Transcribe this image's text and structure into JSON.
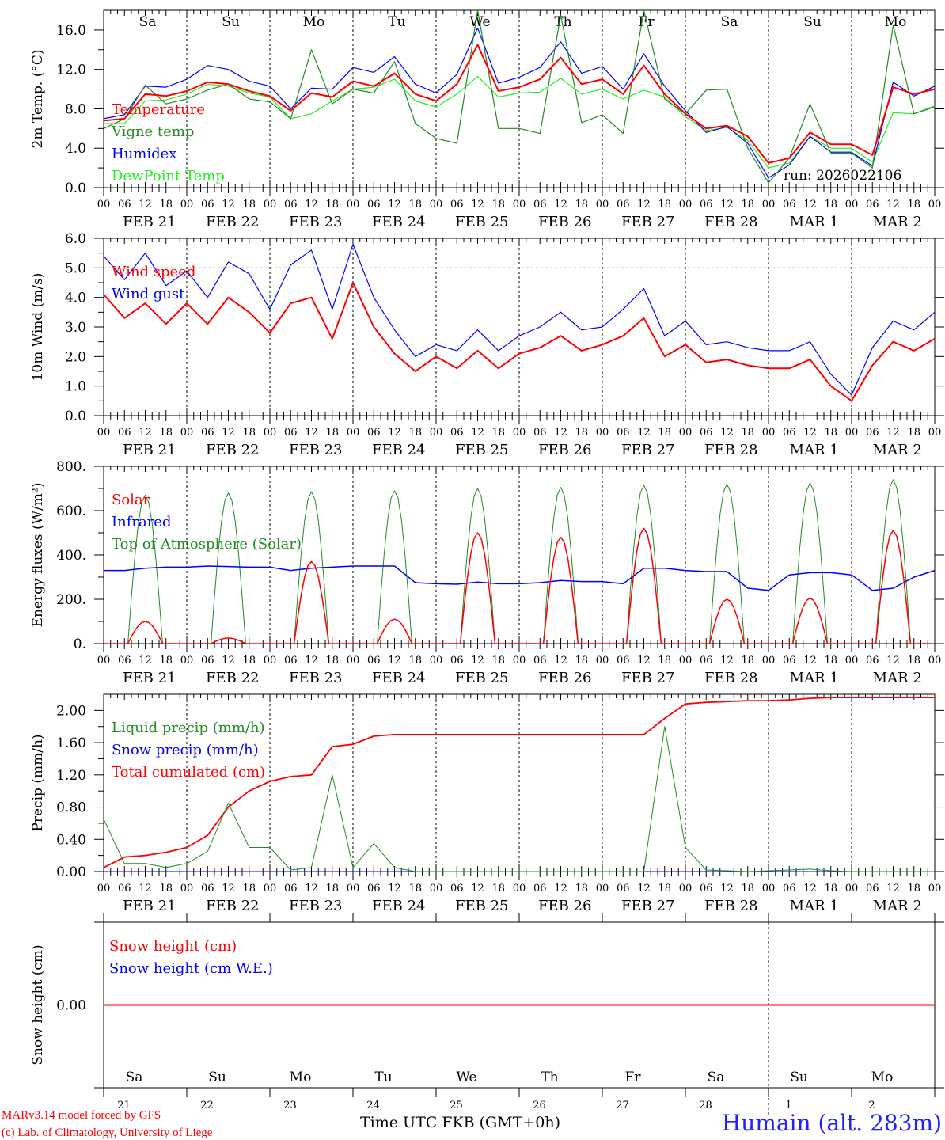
{
  "colors": {
    "red": "#ff0000",
    "green": "#228b22",
    "blue": "#0000ff",
    "lime": "#22ee22",
    "black": "#000000"
  },
  "days": [
    {
      "name": "Sa",
      "date": "FEB  21",
      "num": "21",
      "weekend": true
    },
    {
      "name": "Su",
      "date": "FEB  22",
      "num": "22",
      "weekend": true
    },
    {
      "name": "Mo",
      "date": "FEB  23",
      "num": "23",
      "weekend": false
    },
    {
      "name": "Tu",
      "date": "FEB  24",
      "num": "24",
      "weekend": false
    },
    {
      "name": "We",
      "date": "FEB  25",
      "num": "25",
      "weekend": false
    },
    {
      "name": "Th",
      "date": "FEB  26",
      "num": "26",
      "weekend": false
    },
    {
      "name": "Fr",
      "date": "FEB  27",
      "num": "27",
      "weekend": false
    },
    {
      "name": "Sa",
      "date": "FEB  28",
      "num": "28",
      "weekend": true
    },
    {
      "name": "Su",
      "date": "MAR   1",
      "num": "1",
      "weekend": true
    },
    {
      "name": "Mo",
      "date": "MAR   2",
      "num": "2",
      "weekend": false
    }
  ],
  "hour_labels": [
    "00",
    "06",
    "12",
    "18"
  ],
  "footer": {
    "model": "MARv3.14 model forced by GFS",
    "copyright": "(c) Lab. of Climatology, University of Liege",
    "time_label": "Time UTC",
    "time_overlap": "FKB",
    "time_zone": "(GMT+0h)",
    "station": "Humain (alt. 283m)"
  },
  "chart_data": [
    {
      "type": "line",
      "id": "temp",
      "ylabel": "2m Temp. (°C)",
      "ylim": [
        0,
        18
      ],
      "yticks": [
        0,
        4,
        8,
        12,
        16
      ],
      "ytick_labels": [
        "0.0",
        "4.0",
        "8.0",
        "12.0",
        "16.0"
      ],
      "x_step_hours": 6,
      "annotation": "run: 2026022106",
      "series": [
        {
          "name": "Temperature",
          "color": "#ff0000",
          "width": 2,
          "values": [
            6.8,
            7.0,
            9.5,
            9.3,
            9.8,
            10.7,
            10.5,
            9.8,
            9.3,
            7.8,
            9.6,
            9.2,
            10.8,
            10.3,
            11.6,
            9.5,
            8.8,
            10.5,
            14.5,
            9.8,
            10.2,
            11.0,
            13.2,
            10.5,
            11.0,
            9.5,
            12.4,
            9.5,
            7.5,
            6.0,
            6.3,
            5.2,
            2.5,
            3.0,
            5.6,
            4.4,
            4.4,
            3.3,
            10.2,
            9.5,
            10.0
          ]
        },
        {
          "name": "Vigne temp",
          "color": "#228b22",
          "width": 1.2,
          "values": [
            6.0,
            7.0,
            10.4,
            8.5,
            9.0,
            9.9,
            10.5,
            9.0,
            8.7,
            7.0,
            14.0,
            8.5,
            10.0,
            9.6,
            12.8,
            6.5,
            5.0,
            4.5,
            18.0,
            6.0,
            6.0,
            5.5,
            17.5,
            6.6,
            7.4,
            5.5,
            18.0,
            9.0,
            7.5,
            9.9,
            10.0,
            4.0,
            0.5,
            3.0,
            8.5,
            3.5,
            3.5,
            2.0,
            16.5,
            7.5,
            8.2
          ]
        },
        {
          "name": "Humidex",
          "color": "#0000ff",
          "width": 1.2,
          "values": [
            7.0,
            7.4,
            10.3,
            10.2,
            11.0,
            12.4,
            12.0,
            10.8,
            10.3,
            8.0,
            10.1,
            10.0,
            12.2,
            11.7,
            13.3,
            10.5,
            9.6,
            11.5,
            16.2,
            10.6,
            11.2,
            12.2,
            14.8,
            11.6,
            12.3,
            10.0,
            13.6,
            10.3,
            7.8,
            5.6,
            6.2,
            4.5,
            1.0,
            2.3,
            5.2,
            3.6,
            3.6,
            2.2,
            10.7,
            9.3,
            10.3
          ]
        },
        {
          "name": "DewPoint Temp",
          "color": "#22ee22",
          "width": 1.2,
          "values": [
            6.5,
            6.5,
            8.8,
            8.9,
            9.5,
            10.5,
            10.3,
            9.6,
            9.2,
            7.0,
            7.5,
            8.8,
            10.0,
            10.2,
            11.0,
            8.8,
            8.2,
            9.5,
            11.3,
            9.2,
            9.6,
            9.7,
            11.1,
            9.5,
            10.0,
            9.0,
            9.9,
            9.2,
            7.2,
            5.8,
            6.1,
            4.8,
            2.0,
            2.5,
            5.2,
            4.0,
            4.0,
            2.6,
            7.6,
            7.5,
            8.3
          ]
        }
      ]
    },
    {
      "type": "line",
      "id": "wind",
      "ylabel": "10m Wind (m/s)",
      "ylim": [
        0,
        6
      ],
      "yticks": [
        0,
        1,
        2,
        3,
        4,
        5,
        6
      ],
      "ytick_labels": [
        "0.0",
        "1.0",
        "2.0",
        "3.0",
        "4.0",
        "5.0",
        "6.0"
      ],
      "x_step_hours": 6,
      "reference_line": 5,
      "series": [
        {
          "name": "Wind speed",
          "color": "#ff0000",
          "width": 2,
          "values": [
            4.1,
            3.3,
            3.8,
            3.1,
            3.8,
            3.1,
            4.0,
            3.5,
            2.8,
            3.8,
            4.0,
            2.6,
            4.5,
            3.0,
            2.1,
            1.5,
            2.0,
            1.6,
            2.2,
            1.6,
            2.1,
            2.3,
            2.7,
            2.2,
            2.4,
            2.7,
            3.3,
            2.0,
            2.4,
            1.8,
            1.9,
            1.7,
            1.6,
            1.6,
            1.9,
            1.0,
            0.5,
            1.7,
            2.5,
            2.2,
            2.6
          ]
        },
        {
          "name": "Wind gust",
          "color": "#0000ff",
          "width": 1.2,
          "values": [
            5.4,
            4.6,
            5.5,
            4.4,
            4.9,
            4.0,
            5.2,
            4.8,
            3.6,
            5.1,
            5.6,
            3.6,
            5.8,
            4.0,
            2.9,
            2.0,
            2.4,
            2.2,
            2.9,
            2.2,
            2.7,
            3.0,
            3.5,
            2.9,
            3.0,
            3.6,
            4.3,
            2.7,
            3.2,
            2.4,
            2.5,
            2.3,
            2.2,
            2.2,
            2.5,
            1.4,
            0.7,
            2.3,
            3.2,
            2.9,
            3.5
          ]
        }
      ]
    },
    {
      "type": "line",
      "id": "flux",
      "ylabel": "Energy fluxes (W/m²)",
      "ylim": [
        0,
        800
      ],
      "yticks": [
        0,
        200,
        400,
        600,
        800
      ],
      "ytick_labels": [
        "0.",
        "200.",
        "400.",
        "600.",
        "800."
      ],
      "x_step_hours": 6,
      "daily_curve": "sunrise 07h, sunset 17h",
      "series": [
        {
          "name": "Solar",
          "color": "#ff0000",
          "width": 1.5,
          "daily_peaks": [
            100,
            25,
            370,
            110,
            500,
            480,
            520,
            200,
            205,
            510
          ]
        },
        {
          "name": "Infrared",
          "color": "#0000ff",
          "width": 1.5,
          "values": [
            330,
            330,
            340,
            345,
            345,
            350,
            348,
            345,
            345,
            330,
            340,
            345,
            350,
            350,
            350,
            275,
            270,
            268,
            278,
            270,
            270,
            275,
            285,
            280,
            280,
            270,
            340,
            340,
            330,
            325,
            325,
            250,
            240,
            310,
            320,
            320,
            310,
            240,
            250,
            300,
            330
          ]
        },
        {
          "name": "Top of Atmosphere (Solar)",
          "color": "#228b22",
          "width": 1,
          "daily_peaks": [
            670,
            680,
            685,
            690,
            700,
            705,
            715,
            720,
            725,
            740
          ]
        }
      ]
    },
    {
      "type": "line",
      "id": "precip",
      "ylabel": "Precip (mm/h)",
      "ylim": [
        0,
        2.2
      ],
      "yticks": [
        0,
        0.4,
        0.8,
        1.2,
        1.6,
        2.0
      ],
      "ytick_labels": [
        "0.00",
        "0.40",
        "0.80",
        "1.20",
        "1.60",
        "2.00"
      ],
      "x_step_hours": 6,
      "series": [
        {
          "name": "Liquid precip (mm/h)",
          "color": "#228b22",
          "width": 1,
          "values": [
            0.65,
            0.1,
            0.1,
            0.05,
            0.1,
            0.25,
            0.85,
            0.3,
            0.3,
            0.02,
            0.05,
            1.2,
            0.05,
            0.35,
            0.05,
            0,
            0,
            0,
            0,
            0,
            0,
            0,
            0,
            0,
            0,
            0,
            0,
            1.8,
            0.3,
            0.02,
            0.01,
            0,
            0.01,
            0.02,
            0.03,
            0.01,
            0,
            0,
            0,
            0,
            0
          ]
        },
        {
          "name": "Snow precip (mm/h)",
          "color": "#0000ff",
          "width": 1,
          "values": [
            0,
            0,
            0,
            0,
            0,
            0,
            0,
            0,
            0,
            0,
            0,
            0,
            0,
            0,
            0,
            0,
            0,
            0,
            0,
            0,
            0,
            0,
            0,
            0,
            0,
            0,
            0,
            0,
            0,
            0,
            0,
            0,
            0,
            0,
            0,
            0,
            0,
            0,
            0,
            0,
            0
          ]
        },
        {
          "name": "Total cumulated (cm)",
          "color": "#ff0000",
          "width": 1.8,
          "values": [
            0.05,
            0.18,
            0.2,
            0.24,
            0.3,
            0.45,
            0.8,
            1.0,
            1.12,
            1.18,
            1.2,
            1.55,
            1.58,
            1.68,
            1.7,
            1.7,
            1.7,
            1.7,
            1.7,
            1.7,
            1.7,
            1.7,
            1.7,
            1.7,
            1.7,
            1.7,
            1.7,
            1.9,
            2.08,
            2.1,
            2.11,
            2.12,
            2.12,
            2.13,
            2.15,
            2.16,
            2.16,
            2.16,
            2.16,
            2.16,
            2.16
          ]
        }
      ]
    },
    {
      "type": "line",
      "id": "snow",
      "ylabel": "Snow height (cm)",
      "ylim": [
        -1,
        1
      ],
      "yticks": [
        0
      ],
      "ytick_labels": [
        "0.00"
      ],
      "x_step_hours": 6,
      "series": [
        {
          "name": "Snow height (cm)",
          "color": "#ff0000",
          "width": 2,
          "values": [
            0,
            0,
            0,
            0,
            0,
            0,
            0,
            0,
            0,
            0,
            0,
            0,
            0,
            0,
            0,
            0,
            0,
            0,
            0,
            0,
            0,
            0,
            0,
            0,
            0,
            0,
            0,
            0,
            0,
            0,
            0,
            0,
            0,
            0,
            0,
            0,
            0,
            0,
            0,
            0,
            0
          ]
        },
        {
          "name": "Snow height (cm W.E.)",
          "color": "#0000ff",
          "width": 1,
          "values": []
        }
      ]
    }
  ]
}
